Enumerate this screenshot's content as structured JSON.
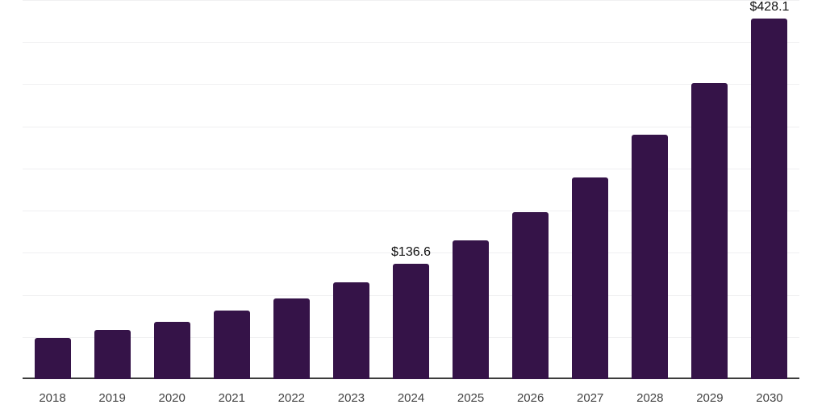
{
  "chart_data": {
    "type": "bar",
    "title": "",
    "xlabel": "",
    "ylabel": "",
    "categories": [
      "2018",
      "2019",
      "2020",
      "2021",
      "2022",
      "2023",
      "2024",
      "2025",
      "2026",
      "2027",
      "2028",
      "2029",
      "2030"
    ],
    "values": [
      48.5,
      58.1,
      67.7,
      81.0,
      95.4,
      114.6,
      136.6,
      164.4,
      197.9,
      239.1,
      289.8,
      351.3,
      428.1
    ],
    "data_labels": [
      "",
      "",
      "",
      "",
      "",
      "",
      "$136.6",
      "",
      "",
      "",
      "",
      "",
      "$428.1"
    ],
    "ylim": [
      0,
      450
    ],
    "gridline_step": 50,
    "grid": true,
    "legend": "none",
    "y_axis_tick_labels": "none",
    "colors": {
      "bar": "#351348",
      "gridline": "#f0f0f1",
      "axis": "#3c3c3c",
      "tick_label": "#434343",
      "data_label": "#111111",
      "background": "#ffffff"
    }
  }
}
